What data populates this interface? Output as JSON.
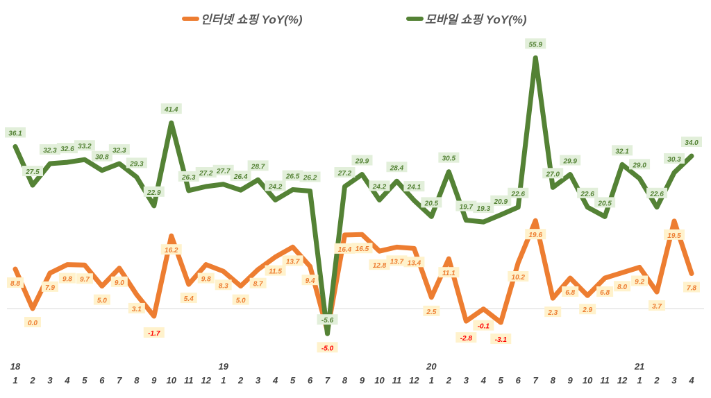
{
  "chart_data": {
    "type": "line",
    "title": "",
    "xlabel": "",
    "ylabel": "",
    "ylim": [
      -10,
      62
    ],
    "grid": false,
    "legend_position": "top",
    "years": [
      {
        "label": "18",
        "index": 0
      },
      {
        "label": "19",
        "index": 12
      },
      {
        "label": "20",
        "index": 24
      },
      {
        "label": "21",
        "index": 36
      }
    ],
    "categories": [
      "1",
      "2",
      "3",
      "4",
      "5",
      "6",
      "7",
      "8",
      "9",
      "10",
      "11",
      "12",
      "1",
      "2",
      "3",
      "4",
      "5",
      "6",
      "7",
      "8",
      "9",
      "10",
      "11",
      "12",
      "1",
      "2",
      "3",
      "4",
      "5",
      "6",
      "7",
      "8",
      "9",
      "10",
      "11",
      "12",
      "1",
      "2",
      "3",
      "4"
    ],
    "series": [
      {
        "name": "인터넷 쇼핑 YoY(%)",
        "color": "#ED7D31",
        "label_bg": "#FFF2CC",
        "label_color": "#ED7D31",
        "negative_label_color": "#FF0000",
        "values": [
          8.8,
          0.0,
          7.9,
          9.8,
          9.7,
          5.0,
          9.0,
          3.1,
          -1.7,
          16.2,
          5.4,
          9.8,
          8.3,
          5.0,
          8.7,
          11.5,
          13.7,
          9.4,
          -5.0,
          16.4,
          16.5,
          12.8,
          13.7,
          13.4,
          2.5,
          11.1,
          -2.8,
          -0.1,
          -3.1,
          10.2,
          19.6,
          2.3,
          6.8,
          2.9,
          6.8,
          8.0,
          9.2,
          3.7,
          19.5,
          7.8
        ]
      },
      {
        "name": "모바일 쇼핑 YoY(%)",
        "color": "#548235",
        "label_bg": "#E2EFDA",
        "label_color": "#548235",
        "negative_label_color": "#548235",
        "values": [
          36.1,
          27.5,
          32.3,
          32.6,
          33.2,
          30.8,
          32.3,
          29.3,
          22.9,
          41.4,
          26.3,
          27.2,
          27.7,
          26.4,
          28.7,
          24.2,
          26.5,
          26.2,
          -5.6,
          27.2,
          29.9,
          24.2,
          28.4,
          24.1,
          20.5,
          30.5,
          19.7,
          19.3,
          20.9,
          22.6,
          55.9,
          27.0,
          29.9,
          22.6,
          20.5,
          32.1,
          29.0,
          22.6,
          30.3,
          34.0
        ]
      }
    ]
  }
}
